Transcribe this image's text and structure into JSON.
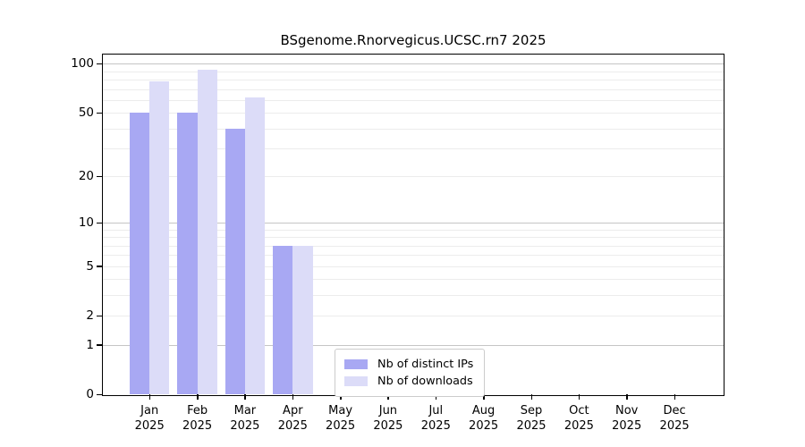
{
  "title": "BSgenome.Rnorvegicus.UCSC.rn7 2025",
  "chart_data": {
    "type": "bar",
    "title": "BSgenome.Rnorvegicus.UCSC.rn7 2025",
    "categories": [
      "Jan",
      "Feb",
      "Mar",
      "Apr",
      "May",
      "Jun",
      "Jul",
      "Aug",
      "Sep",
      "Oct",
      "Nov",
      "Dec"
    ],
    "year": "2025",
    "series": [
      {
        "name": "Nb of distinct IPs",
        "color": "#a8a8f3",
        "values": [
          50,
          50,
          40,
          7,
          0,
          0,
          0,
          0,
          0,
          0,
          0,
          0
        ]
      },
      {
        "name": "Nb of downloads",
        "color": "#dcdcf8",
        "values": [
          78,
          92,
          62,
          7,
          0,
          0,
          0,
          0,
          0,
          0,
          0,
          0
        ]
      }
    ],
    "xlabel": "",
    "ylabel": "",
    "yscale": "log1p",
    "ylim": [
      0,
      114
    ],
    "yticks": [
      0,
      1,
      2,
      5,
      10,
      20,
      50,
      100
    ],
    "minor_gridlines": [
      2,
      3,
      4,
      5,
      6,
      7,
      8,
      9,
      20,
      30,
      40,
      50,
      60,
      70,
      80,
      90
    ],
    "major_gridlines": [
      1,
      10,
      100
    ],
    "grid": true,
    "legend_position": "inside-bottom-center"
  }
}
